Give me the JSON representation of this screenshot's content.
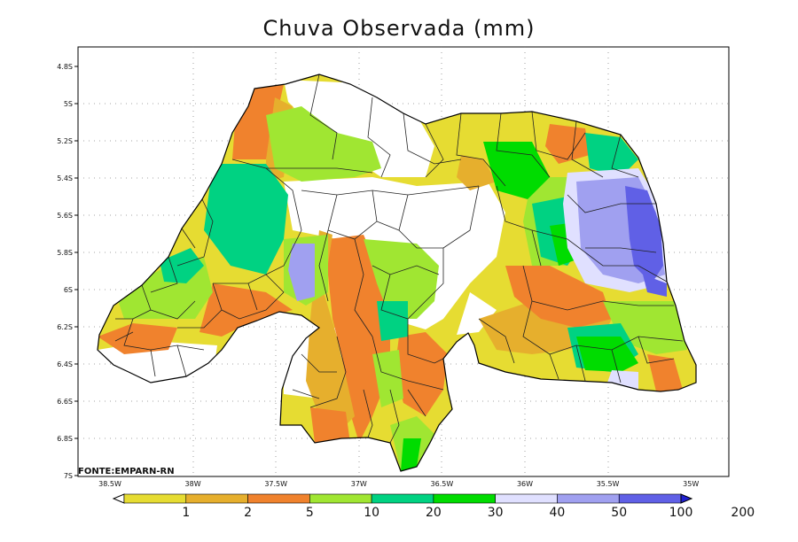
{
  "title": "Chuva Observada (mm)",
  "source": "FONTE:EMPARN-RN",
  "lat_ticks": [
    "4.8S",
    "5S",
    "5.2S",
    "5.4S",
    "5.6S",
    "5.8S",
    "6S",
    "6.2S",
    "6.4S",
    "6.6S",
    "6.8S",
    "7S"
  ],
  "lon_ticks": [
    "38.5W",
    "38W",
    "37.5W",
    "37W",
    "36.5W",
    "36W",
    "35.5W",
    "35W"
  ],
  "colorbar": {
    "labels": [
      "1",
      "2",
      "5",
      "10",
      "20",
      "30",
      "40",
      "50",
      "100",
      "200"
    ],
    "colors": [
      "#ffffff",
      "#e6dc32",
      "#e6af2d",
      "#f0822d",
      "#a0e632",
      "#00d282",
      "#00dc00",
      "#e0e0ff",
      "#a0a0f0",
      "#6060e6",
      "#2020d0"
    ]
  },
  "colors": {
    "lt1": "#ffffff",
    "c1_2": "#e6dc32",
    "c2_5": "#e6af2d",
    "c5_10": "#f0822d",
    "c10_20": "#a0e632",
    "c20_30": "#00d282",
    "c30_40": "#00dc00",
    "c40_50": "#e0e0ff",
    "c50_100": "#a0a0f0",
    "c100_200": "#6060e6"
  }
}
